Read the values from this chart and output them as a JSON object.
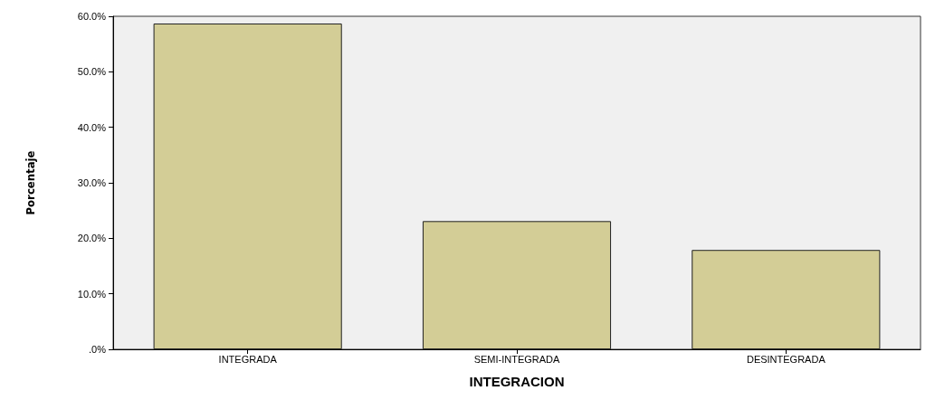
{
  "chart_data": {
    "type": "bar",
    "xlabel": "INTEGRACION",
    "ylabel": "Porcentaje",
    "categories": [
      "INTEGRADA",
      "SEMI-INTEGRADA",
      "DESINTEGRADA"
    ],
    "values": [
      58.7,
      23.1,
      17.9
    ],
    "color": "#d3cd96",
    "ylim": [
      0,
      60
    ],
    "yticks": [
      {
        "value": 0,
        "label": ".0%"
      },
      {
        "value": 10,
        "label": "10.0%"
      },
      {
        "value": 20,
        "label": "20.0%"
      },
      {
        "value": 30,
        "label": "30.0%"
      },
      {
        "value": 40,
        "label": "40.0%"
      },
      {
        "value": 50,
        "label": "50.0%"
      },
      {
        "value": 60,
        "label": "60.0%"
      }
    ],
    "grid": false
  }
}
